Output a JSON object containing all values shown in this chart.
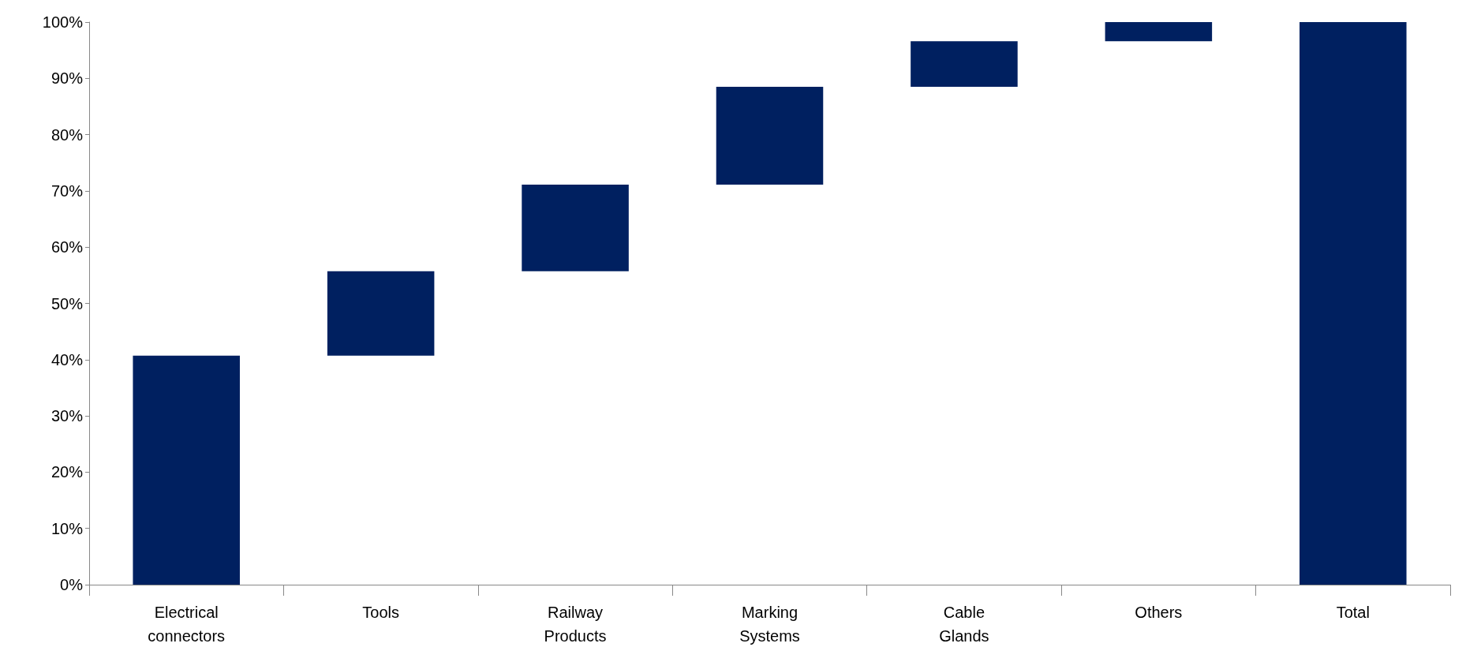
{
  "chart_data": {
    "type": "bar",
    "categories": [
      "Electrical\nconnectors",
      "Tools",
      "Railway\nProducts",
      "Marking\nSystems",
      "Cable\nGlands",
      "Others",
      "Total"
    ],
    "values": [
      40.7,
      15.0,
      15.4,
      17.4,
      8.1,
      3.4,
      100
    ],
    "base": [
      0,
      40.7,
      55.7,
      71.1,
      88.5,
      96.6,
      0
    ],
    "color": "#002060",
    "ylim": [
      0,
      100
    ],
    "yticks": [
      {
        "value": 0,
        "label": "0%"
      },
      {
        "value": 10,
        "label": "10%"
      },
      {
        "value": 20,
        "label": "20%"
      },
      {
        "value": 30,
        "label": "30%"
      },
      {
        "value": 40,
        "label": "40%"
      },
      {
        "value": 50,
        "label": "50%"
      },
      {
        "value": 60,
        "label": "60%"
      },
      {
        "value": 70,
        "label": "70%"
      },
      {
        "value": 80,
        "label": "80%"
      },
      {
        "value": 90,
        "label": "90%"
      },
      {
        "value": 100,
        "label": "100%"
      }
    ],
    "grid": false
  }
}
